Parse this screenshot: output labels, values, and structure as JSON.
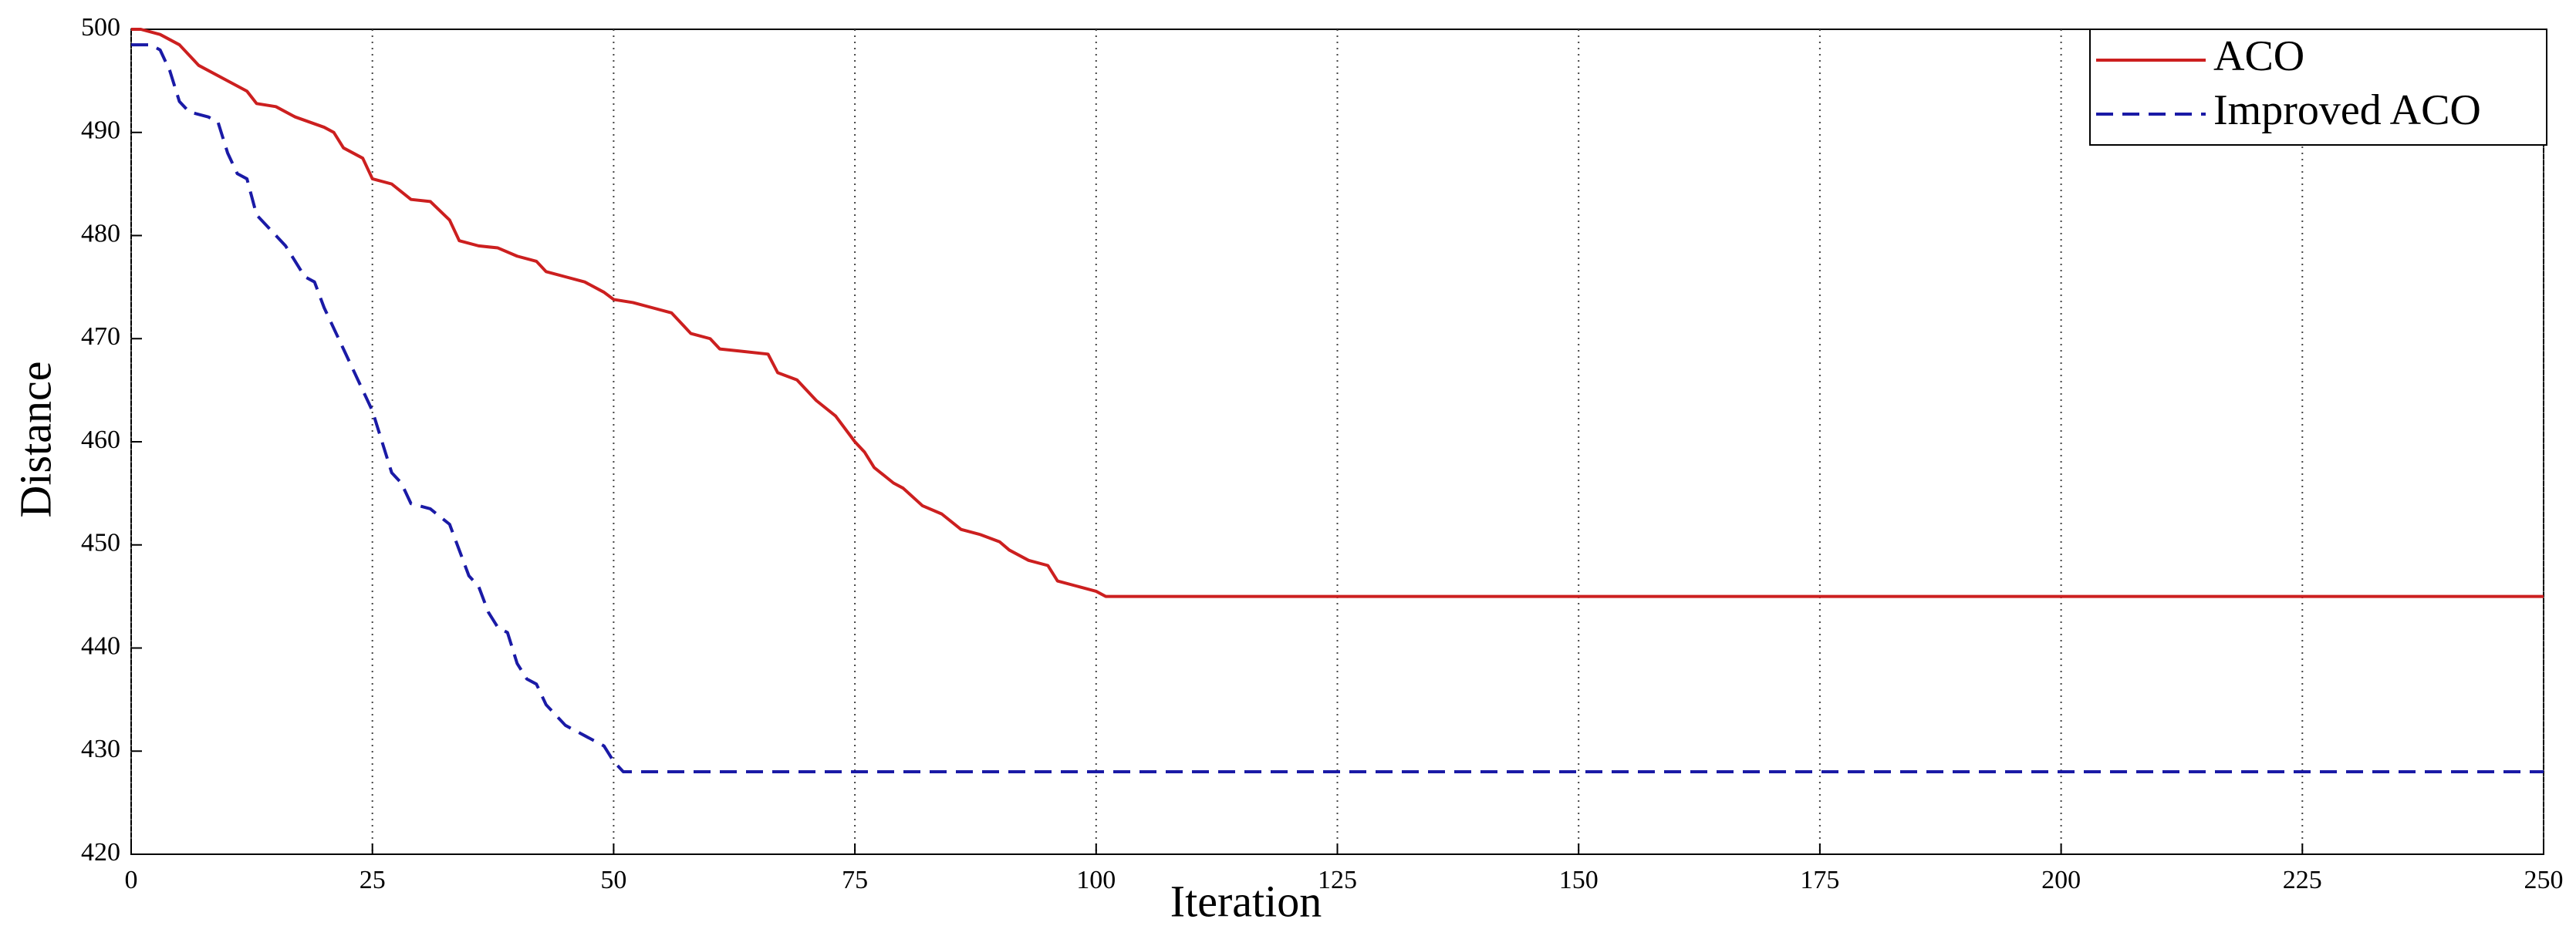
{
  "chart_data": {
    "type": "line",
    "x_label": "Iteration",
    "y_label": "Distance",
    "xlim": [
      0,
      250
    ],
    "xticks": [
      0,
      25,
      50,
      75,
      100,
      125,
      150,
      175,
      200,
      225,
      250
    ],
    "ylim": [
      420,
      500
    ],
    "yticks": [
      420,
      430,
      440,
      450,
      460,
      470,
      480,
      490,
      500
    ],
    "grid": "x",
    "legend": "upper right",
    "series": [
      {
        "name": "ACO",
        "color": "#cc1f1f",
        "linestyle": "solid",
        "x": [
          0,
          1,
          3,
          5,
          7,
          10,
          12,
          13,
          15,
          17,
          20,
          21,
          22,
          24,
          25,
          27,
          29,
          31,
          33,
          34,
          36,
          38,
          40,
          42,
          43,
          45,
          47,
          49,
          50,
          52,
          54,
          56,
          58,
          60,
          61,
          63,
          66,
          67,
          69,
          71,
          73,
          75,
          76,
          77,
          79,
          80,
          82,
          84,
          86,
          88,
          90,
          91,
          93,
          95,
          96,
          98,
          100,
          101,
          250
        ],
        "values": [
          500,
          500,
          499.5,
          498.5,
          496.5,
          495,
          494,
          492.8,
          492.5,
          491.5,
          490.5,
          490,
          488.5,
          487.5,
          485.5,
          485,
          483.5,
          483.3,
          481.5,
          479.5,
          479,
          478.8,
          478,
          477.5,
          476.5,
          476,
          475.5,
          474.5,
          473.8,
          473.5,
          473,
          472.5,
          470.5,
          470,
          469,
          468.8,
          468.5,
          466.7,
          466,
          464,
          462.5,
          460,
          459,
          457.5,
          456,
          455.5,
          453.8,
          453,
          451.5,
          451,
          450.3,
          449.5,
          448.5,
          448,
          446.5,
          446,
          445.5,
          445,
          445
        ]
      },
      {
        "name": "Improved ACO",
        "color": "#1a1aa6",
        "linestyle": "dashed",
        "x": [
          0,
          2,
          3,
          4,
          5,
          6,
          8,
          9,
          10,
          11,
          12,
          13,
          14,
          16,
          17,
          18,
          19,
          20,
          22,
          24,
          25,
          26,
          27,
          28,
          29,
          31,
          33,
          35,
          36,
          37,
          38,
          39,
          40,
          41,
          42,
          43,
          45,
          47,
          49,
          50,
          51,
          250
        ],
        "values": [
          498.5,
          498.5,
          498,
          496,
          493,
          492,
          491.5,
          491,
          488,
          486,
          485.5,
          482,
          481,
          479,
          477.5,
          476,
          475.5,
          473,
          469,
          465,
          463,
          460,
          457,
          456,
          454,
          453.5,
          452,
          447,
          446,
          443.5,
          442,
          441.5,
          438.5,
          437,
          436.5,
          434.5,
          432.5,
          431.5,
          430.5,
          429,
          428,
          428
        ]
      }
    ]
  }
}
